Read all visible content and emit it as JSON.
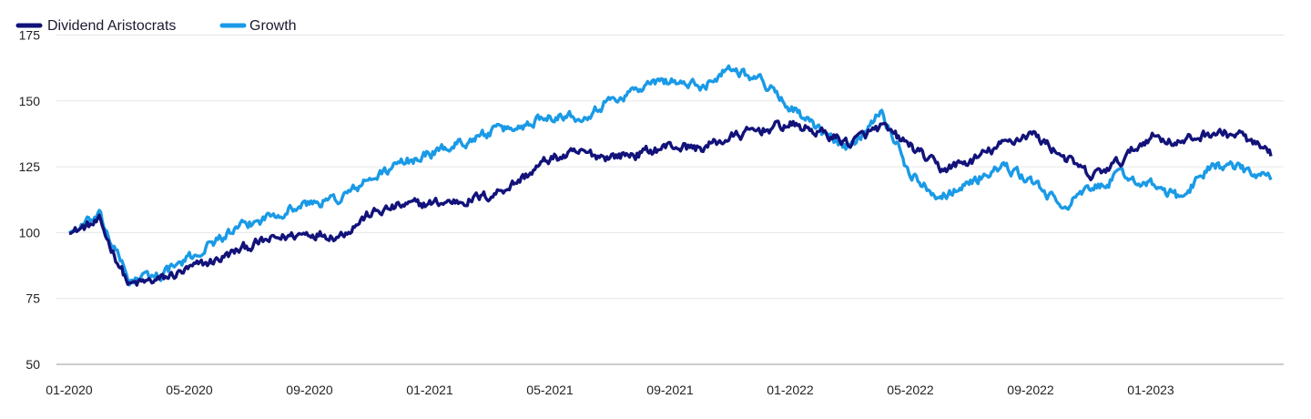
{
  "chart_data": {
    "type": "line",
    "title": "",
    "xlabel": "",
    "ylabel": "",
    "x_range": [
      "2020-01",
      "2023-05"
    ],
    "ylim": [
      50,
      180
    ],
    "y_ticks": [
      50,
      75,
      100,
      125,
      150,
      175
    ],
    "x_ticks": [
      "01-2020",
      "05-2020",
      "09-2020",
      "01-2021",
      "05-2021",
      "09-2021",
      "01-2022",
      "05-2022",
      "09-2022",
      "01-2023"
    ],
    "grid": "horizontal",
    "legend_position": "top-left",
    "x": [
      "2020-01",
      "2020-02",
      "2020-03",
      "2020-04",
      "2020-05",
      "2020-06",
      "2020-07",
      "2020-08",
      "2020-09",
      "2020-10",
      "2020-11",
      "2020-12",
      "2021-01",
      "2021-02",
      "2021-03",
      "2021-04",
      "2021-05",
      "2021-06",
      "2021-07",
      "2021-08",
      "2021-09",
      "2021-10",
      "2021-11",
      "2021-12",
      "2022-01",
      "2022-02",
      "2022-03",
      "2022-04",
      "2022-05",
      "2022-06",
      "2022-07",
      "2022-08",
      "2022-09",
      "2022-10",
      "2022-11",
      "2022-12",
      "2023-01",
      "2023-02",
      "2023-03",
      "2023-04",
      "2023-05"
    ],
    "series": [
      {
        "name": "Dividend Aristocrats",
        "color": "#12127a",
        "values": [
          100,
          104,
          80,
          82,
          86,
          90,
          95,
          98,
          100,
          99,
          107,
          110,
          111,
          112,
          114,
          120,
          128,
          130,
          129,
          130,
          133,
          132,
          136,
          139,
          141,
          138,
          134,
          140,
          133,
          124,
          127,
          133,
          138,
          130,
          121,
          127,
          137,
          134,
          138,
          137,
          129
        ]
      },
      {
        "name": "Growth",
        "color": "#1a9ae6",
        "values": [
          100,
          106,
          82,
          84,
          90,
          98,
          103,
          108,
          111,
          113,
          120,
          126,
          130,
          134,
          138,
          140,
          145,
          144,
          150,
          155,
          158,
          155,
          163,
          158,
          148,
          138,
          132,
          147,
          122,
          114,
          119,
          125,
          120,
          110,
          116,
          122,
          118,
          113,
          126,
          124,
          120
        ]
      }
    ]
  }
}
